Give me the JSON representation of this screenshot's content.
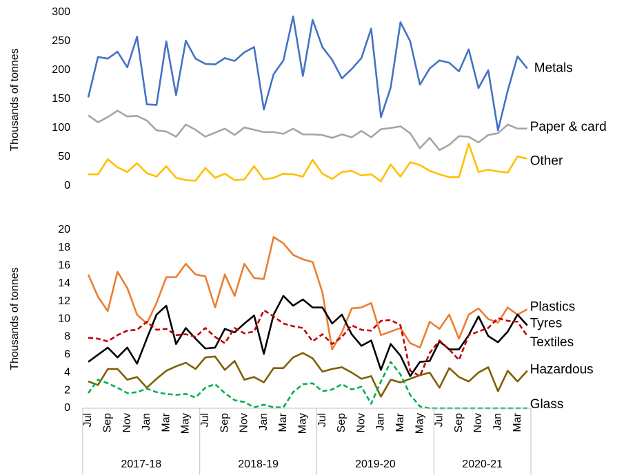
{
  "chart_data": [
    {
      "type": "line",
      "ylabel": "Thousands of tonnes",
      "ylim": [
        0,
        300
      ],
      "yticks": [
        0,
        50,
        100,
        150,
        200,
        250,
        300
      ],
      "series": [
        {
          "name": "Metals",
          "color": "#4472c4",
          "dash": false,
          "values": [
            153,
            223,
            220,
            232,
            205,
            258,
            141,
            140,
            250,
            157,
            251,
            220,
            211,
            210,
            221,
            216,
            231,
            240,
            132,
            193,
            217,
            293,
            190,
            287,
            240,
            218,
            186,
            202,
            221,
            272,
            119,
            170,
            283,
            250,
            175,
            203,
            217,
            213,
            198,
            236,
            169,
            200,
            96,
            165,
            224,
            203
          ]
        },
        {
          "name": "Paper & card",
          "color": "#a5a5a5",
          "dash": false,
          "values": [
            122,
            110,
            119,
            130,
            120,
            121,
            113,
            96,
            94,
            85,
            106,
            97,
            85,
            92,
            99,
            88,
            101,
            97,
            93,
            93,
            90,
            99,
            89,
            89,
            88,
            83,
            89,
            84,
            95,
            84,
            98,
            100,
            103,
            91,
            65,
            83,
            62,
            71,
            86,
            85,
            75,
            88,
            91,
            106,
            99,
            99
          ]
        },
        {
          "name": "Other",
          "color": "#ffc000",
          "dash": false,
          "values": [
            20,
            20,
            46,
            32,
            24,
            39,
            22,
            16,
            34,
            14,
            10,
            9,
            31,
            14,
            21,
            10,
            11,
            34,
            11,
            14,
            21,
            20,
            16,
            45,
            21,
            12,
            24,
            26,
            18,
            20,
            8,
            37,
            16,
            41,
            36,
            26,
            20,
            15,
            15,
            73,
            24,
            28,
            25,
            23,
            51,
            47
          ]
        }
      ]
    },
    {
      "type": "line",
      "ylabel": "Thousands of tonnes",
      "ylim": [
        0,
        20
      ],
      "yticks": [
        0,
        2,
        4,
        6,
        8,
        10,
        12,
        14,
        16,
        18,
        20
      ],
      "categories": [
        "Jul",
        null,
        "Sep",
        null,
        "Nov",
        null,
        "Jan",
        null,
        "Mar",
        null,
        "May",
        null,
        "Jul",
        null,
        "Sep",
        null,
        "Nov",
        null,
        "Jan",
        null,
        "Mar",
        null,
        "May",
        null,
        "Jul",
        null,
        "Sep",
        null,
        "Nov",
        null,
        "Jan",
        null,
        "Mar",
        null,
        "May",
        null,
        "Jul",
        null,
        "Sep",
        null,
        "Nov",
        null,
        "Jan",
        null,
        "Mar",
        null
      ],
      "groups": [
        "2017-18",
        "2018-19",
        "2019-20",
        "2020-21"
      ],
      "series": [
        {
          "name": "Plastics",
          "color": "#ed7d31",
          "dash": false,
          "values": [
            15,
            12.5,
            10.9,
            15.3,
            13.5,
            10.5,
            9.5,
            11.8,
            14.7,
            14.7,
            16.2,
            15,
            14.8,
            11.3,
            15,
            12.6,
            16.2,
            14.6,
            14.5,
            19.2,
            18.5,
            17.2,
            16.7,
            16.4,
            13,
            6.6,
            8.5,
            11.2,
            11.3,
            11.8,
            8.2,
            8.6,
            9,
            7.3,
            6.8,
            9.7,
            8.9,
            10.5,
            7.8,
            10.5,
            11.2,
            10,
            9.6,
            11.3,
            10.5,
            11.1
          ]
        },
        {
          "name": "Tyres",
          "color": "#000000",
          "dash": false,
          "values": [
            5.2,
            6,
            6.8,
            5.7,
            6.8,
            5,
            7.8,
            10.5,
            11.5,
            7.2,
            9,
            7.8,
            6.7,
            6.8,
            8.9,
            8.5,
            9.5,
            10.4,
            6.1,
            10.5,
            12.6,
            11.5,
            12.2,
            11.3,
            11.3,
            9.5,
            10.5,
            8.3,
            7,
            7.6,
            4.3,
            7.2,
            5.9,
            3.6,
            5.2,
            5.3,
            7.5,
            6.6,
            6.6,
            8.2,
            10.3,
            8.1,
            7.4,
            8.6,
            10.5,
            9.3
          ]
        },
        {
          "name": "Textiles",
          "color": "#c00000",
          "dash": true,
          "values": [
            7.9,
            7.8,
            7.5,
            8.2,
            8.7,
            8.8,
            9.7,
            8.8,
            8.9,
            8.2,
            8.3,
            8,
            9,
            8,
            7.3,
            9,
            8.4,
            8.6,
            11,
            10.3,
            9.5,
            9.2,
            9,
            7.5,
            8.3,
            7.2,
            8,
            9.3,
            8.8,
            8.7,
            9.8,
            9.9,
            9.3,
            4.2,
            3.6,
            6.2,
            7.6,
            6.6,
            5.4,
            8.2,
            8.6,
            9,
            10.1,
            9.8,
            9.7,
            8.1
          ]
        },
        {
          "name": "Hazardous",
          "color": "#7f6000",
          "dash": false,
          "values": [
            3,
            2.6,
            4.4,
            4.4,
            3.2,
            3.5,
            2.3,
            3.3,
            4.2,
            4.7,
            5.1,
            4.4,
            5.7,
            5.8,
            4.3,
            5.3,
            3.2,
            3.5,
            2.9,
            4.5,
            4.5,
            5.7,
            6.2,
            5.6,
            4.1,
            4.4,
            4.6,
            4,
            3.3,
            3.6,
            1.3,
            3.2,
            2.9,
            3.3,
            3.7,
            4,
            2.3,
            4.5,
            3.5,
            3,
            4,
            4.6,
            1.9,
            4.2,
            3,
            4.2
          ]
        },
        {
          "name": "Glass",
          "color": "#00b050",
          "dash": true,
          "values": [
            1.7,
            3.2,
            2.8,
            2.3,
            1.7,
            1.8,
            2.2,
            1.8,
            1.6,
            1.5,
            1.6,
            1.2,
            2.3,
            2.7,
            1.7,
            0.9,
            0.7,
            0.1,
            0.4,
            0.1,
            0.1,
            1.8,
            2.7,
            2.8,
            1.9,
            2.1,
            2.7,
            2.1,
            2.4,
            0.5,
            3,
            5.2,
            3.8,
            1.5,
            0.2,
            0,
            0,
            0,
            0,
            0,
            0,
            0,
            0,
            0,
            0,
            0
          ]
        }
      ]
    }
  ]
}
